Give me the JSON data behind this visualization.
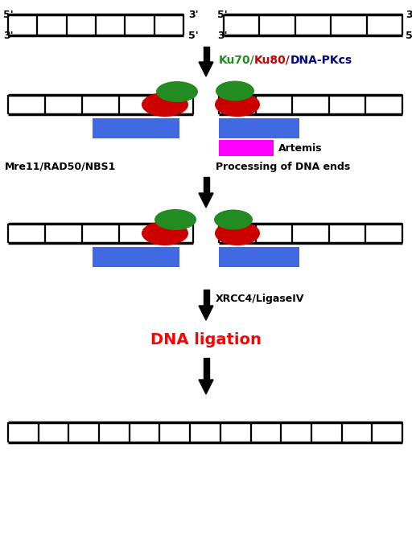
{
  "bg_color": "#ffffff",
  "dna_color": "#000000",
  "blue_rect_color": "#4169E1",
  "red_ellipse_color": "#CC0000",
  "green_ellipse_color": "#228B22",
  "magenta_rect_color": "#FF00FF",
  "ku70_color": "#228B22",
  "ku80_color": "#CC0000",
  "dnapkcs_color": "#00008B",
  "dna_ligation_color": "#FF0000",
  "label_color": "#000000",
  "labels": {
    "artemis": "Artemis",
    "mre11": "Mre11/RAD50/NBS1",
    "processing": "Processing of DNA ends",
    "xrcc4": "XRCC4/LigaseIV",
    "dna_ligation": "DNA ligation"
  },
  "fig_w": 5.12,
  "fig_h": 6.75,
  "dpi": 100
}
